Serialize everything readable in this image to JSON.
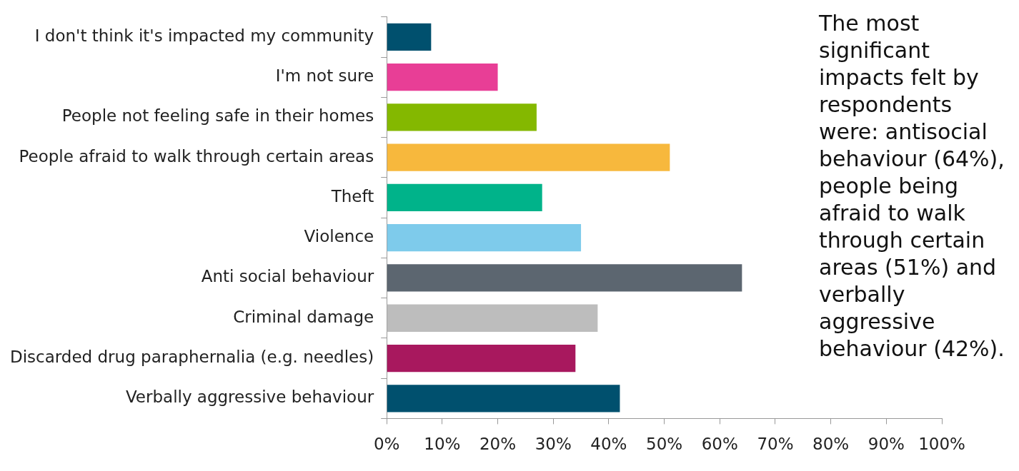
{
  "chart_data": {
    "type": "bar",
    "orientation": "horizontal",
    "categories": [
      "I don't think it's impacted my community",
      "I'm not sure",
      "People not feeling safe in their homes",
      "People afraid to walk through certain areas",
      "Theft",
      "Violence",
      "Anti social behaviour",
      "Criminal damage",
      "Discarded drug paraphernalia (e.g. needles)",
      "Verbally aggressive behaviour"
    ],
    "values": [
      8,
      20,
      27,
      51,
      28,
      35,
      64,
      38,
      34,
      42
    ],
    "colors": [
      "#00506e",
      "#e83e96",
      "#84b800",
      "#f7b83d",
      "#00b38a",
      "#7ecbeb",
      "#5c6670",
      "#bdbdbd",
      "#a8185e",
      "#00506e"
    ],
    "xlim": [
      0,
      100
    ],
    "xticks": [
      {
        "value": 0,
        "label": "0%"
      },
      {
        "value": 10,
        "label": "10%"
      },
      {
        "value": 20,
        "label": "20%"
      },
      {
        "value": 30,
        "label": "30%"
      },
      {
        "value": 40,
        "label": "40%"
      },
      {
        "value": 50,
        "label": "50%"
      },
      {
        "value": 60,
        "label": "60%"
      },
      {
        "value": 70,
        "label": "70%"
      },
      {
        "value": 80,
        "label": "80%"
      },
      {
        "value": 90,
        "label": "90%"
      },
      {
        "value": 100,
        "label": "100%"
      }
    ],
    "grid": false,
    "legend": false,
    "annotations": [
      "The most significant impacts felt by respondents were: antisocial behaviour (64%), people being afraid to walk through certain areas (51%) and verbally aggressive behaviour (42%)."
    ]
  }
}
